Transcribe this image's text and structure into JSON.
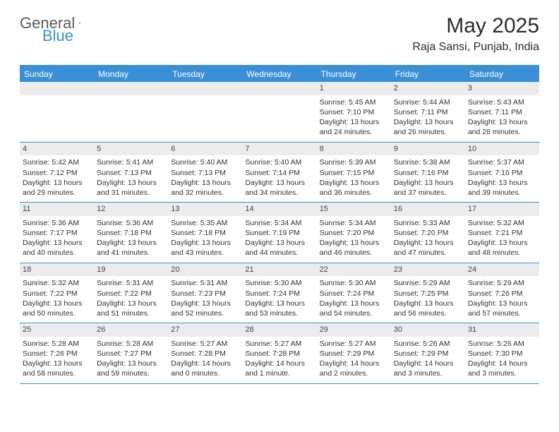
{
  "logo": {
    "text_general": "General",
    "text_blue": "Blue"
  },
  "title": {
    "month": "May 2025",
    "location": "Raja Sansi, Punjab, India"
  },
  "colors": {
    "accent": "#3b8fd6",
    "header_text": "#ffffff",
    "daynum_bg": "#ececec",
    "body_text": "#333333",
    "logo_gray": "#5b5b5b"
  },
  "day_names": [
    "Sunday",
    "Monday",
    "Tuesday",
    "Wednesday",
    "Thursday",
    "Friday",
    "Saturday"
  ],
  "weeks": [
    [
      null,
      null,
      null,
      null,
      {
        "n": "1",
        "sr": "Sunrise: 5:45 AM",
        "ss": "Sunset: 7:10 PM",
        "dl1": "Daylight: 13 hours",
        "dl2": "and 24 minutes."
      },
      {
        "n": "2",
        "sr": "Sunrise: 5:44 AM",
        "ss": "Sunset: 7:11 PM",
        "dl1": "Daylight: 13 hours",
        "dl2": "and 26 minutes."
      },
      {
        "n": "3",
        "sr": "Sunrise: 5:43 AM",
        "ss": "Sunset: 7:11 PM",
        "dl1": "Daylight: 13 hours",
        "dl2": "and 28 minutes."
      }
    ],
    [
      {
        "n": "4",
        "sr": "Sunrise: 5:42 AM",
        "ss": "Sunset: 7:12 PM",
        "dl1": "Daylight: 13 hours",
        "dl2": "and 29 minutes."
      },
      {
        "n": "5",
        "sr": "Sunrise: 5:41 AM",
        "ss": "Sunset: 7:13 PM",
        "dl1": "Daylight: 13 hours",
        "dl2": "and 31 minutes."
      },
      {
        "n": "6",
        "sr": "Sunrise: 5:40 AM",
        "ss": "Sunset: 7:13 PM",
        "dl1": "Daylight: 13 hours",
        "dl2": "and 32 minutes."
      },
      {
        "n": "7",
        "sr": "Sunrise: 5:40 AM",
        "ss": "Sunset: 7:14 PM",
        "dl1": "Daylight: 13 hours",
        "dl2": "and 34 minutes."
      },
      {
        "n": "8",
        "sr": "Sunrise: 5:39 AM",
        "ss": "Sunset: 7:15 PM",
        "dl1": "Daylight: 13 hours",
        "dl2": "and 36 minutes."
      },
      {
        "n": "9",
        "sr": "Sunrise: 5:38 AM",
        "ss": "Sunset: 7:16 PM",
        "dl1": "Daylight: 13 hours",
        "dl2": "and 37 minutes."
      },
      {
        "n": "10",
        "sr": "Sunrise: 5:37 AM",
        "ss": "Sunset: 7:16 PM",
        "dl1": "Daylight: 13 hours",
        "dl2": "and 39 minutes."
      }
    ],
    [
      {
        "n": "11",
        "sr": "Sunrise: 5:36 AM",
        "ss": "Sunset: 7:17 PM",
        "dl1": "Daylight: 13 hours",
        "dl2": "and 40 minutes."
      },
      {
        "n": "12",
        "sr": "Sunrise: 5:36 AM",
        "ss": "Sunset: 7:18 PM",
        "dl1": "Daylight: 13 hours",
        "dl2": "and 41 minutes."
      },
      {
        "n": "13",
        "sr": "Sunrise: 5:35 AM",
        "ss": "Sunset: 7:18 PM",
        "dl1": "Daylight: 13 hours",
        "dl2": "and 43 minutes."
      },
      {
        "n": "14",
        "sr": "Sunrise: 5:34 AM",
        "ss": "Sunset: 7:19 PM",
        "dl1": "Daylight: 13 hours",
        "dl2": "and 44 minutes."
      },
      {
        "n": "15",
        "sr": "Sunrise: 5:34 AM",
        "ss": "Sunset: 7:20 PM",
        "dl1": "Daylight: 13 hours",
        "dl2": "and 46 minutes."
      },
      {
        "n": "16",
        "sr": "Sunrise: 5:33 AM",
        "ss": "Sunset: 7:20 PM",
        "dl1": "Daylight: 13 hours",
        "dl2": "and 47 minutes."
      },
      {
        "n": "17",
        "sr": "Sunrise: 5:32 AM",
        "ss": "Sunset: 7:21 PM",
        "dl1": "Daylight: 13 hours",
        "dl2": "and 48 minutes."
      }
    ],
    [
      {
        "n": "18",
        "sr": "Sunrise: 5:32 AM",
        "ss": "Sunset: 7:22 PM",
        "dl1": "Daylight: 13 hours",
        "dl2": "and 50 minutes."
      },
      {
        "n": "19",
        "sr": "Sunrise: 5:31 AM",
        "ss": "Sunset: 7:22 PM",
        "dl1": "Daylight: 13 hours",
        "dl2": "and 51 minutes."
      },
      {
        "n": "20",
        "sr": "Sunrise: 5:31 AM",
        "ss": "Sunset: 7:23 PM",
        "dl1": "Daylight: 13 hours",
        "dl2": "and 52 minutes."
      },
      {
        "n": "21",
        "sr": "Sunrise: 5:30 AM",
        "ss": "Sunset: 7:24 PM",
        "dl1": "Daylight: 13 hours",
        "dl2": "and 53 minutes."
      },
      {
        "n": "22",
        "sr": "Sunrise: 5:30 AM",
        "ss": "Sunset: 7:24 PM",
        "dl1": "Daylight: 13 hours",
        "dl2": "and 54 minutes."
      },
      {
        "n": "23",
        "sr": "Sunrise: 5:29 AM",
        "ss": "Sunset: 7:25 PM",
        "dl1": "Daylight: 13 hours",
        "dl2": "and 56 minutes."
      },
      {
        "n": "24",
        "sr": "Sunrise: 5:29 AM",
        "ss": "Sunset: 7:26 PM",
        "dl1": "Daylight: 13 hours",
        "dl2": "and 57 minutes."
      }
    ],
    [
      {
        "n": "25",
        "sr": "Sunrise: 5:28 AM",
        "ss": "Sunset: 7:26 PM",
        "dl1": "Daylight: 13 hours",
        "dl2": "and 58 minutes."
      },
      {
        "n": "26",
        "sr": "Sunrise: 5:28 AM",
        "ss": "Sunset: 7:27 PM",
        "dl1": "Daylight: 13 hours",
        "dl2": "and 59 minutes."
      },
      {
        "n": "27",
        "sr": "Sunrise: 5:27 AM",
        "ss": "Sunset: 7:28 PM",
        "dl1": "Daylight: 14 hours",
        "dl2": "and 0 minutes."
      },
      {
        "n": "28",
        "sr": "Sunrise: 5:27 AM",
        "ss": "Sunset: 7:28 PM",
        "dl1": "Daylight: 14 hours",
        "dl2": "and 1 minute."
      },
      {
        "n": "29",
        "sr": "Sunrise: 5:27 AM",
        "ss": "Sunset: 7:29 PM",
        "dl1": "Daylight: 14 hours",
        "dl2": "and 2 minutes."
      },
      {
        "n": "30",
        "sr": "Sunrise: 5:26 AM",
        "ss": "Sunset: 7:29 PM",
        "dl1": "Daylight: 14 hours",
        "dl2": "and 3 minutes."
      },
      {
        "n": "31",
        "sr": "Sunrise: 5:26 AM",
        "ss": "Sunset: 7:30 PM",
        "dl1": "Daylight: 14 hours",
        "dl2": "and 3 minutes."
      }
    ]
  ]
}
